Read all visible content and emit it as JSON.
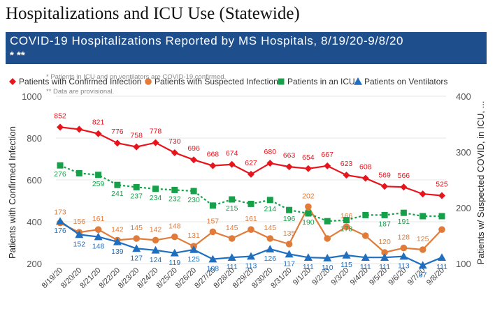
{
  "page_title": "Hospitalizations and ICU Use (Statewide)",
  "banner": {
    "title": "COVID-19 Hospitalizations Reported by MS Hospitals, 8/19/20-9/8/20",
    "marks": "* **"
  },
  "notes": {
    "note1": "* Patients in ICU and on ventilators are COVID-19 confirmed.",
    "note2": "** Data are provisional."
  },
  "colors": {
    "confirmed": "#e8141c",
    "suspected": "#e07b39",
    "icu": "#16a04a",
    "ventilators": "#1f6fc1",
    "banner": "#1f4e8c"
  },
  "chart_data": {
    "type": "line",
    "categories": [
      "8/19/20",
      "8/20/20",
      "8/21/20",
      "8/22/20",
      "8/23/20",
      "8/24/20",
      "8/25/20",
      "8/26/20",
      "8/27/20",
      "8/28/20",
      "8/29/20",
      "8/30/20",
      "8/31/20",
      "9/1/20",
      "9/2/20",
      "9/3/20",
      "9/4/20",
      "9/5/20",
      "9/6/20",
      "9/7/20",
      "9/8/20"
    ],
    "ylabel": "Patients with Confirmed Infection",
    "y2label": "Patients w/ Suspected COVID, in ICU, ...",
    "ylim": [
      200,
      1000
    ],
    "y2lim": [
      100,
      400
    ],
    "yticks": [
      "1000",
      "800",
      "600",
      "400",
      "200"
    ],
    "y2ticks": [
      "400",
      "300",
      "200",
      "100"
    ],
    "legend_position": "top",
    "series": [
      {
        "name": "Patients with Confirmed Infection",
        "axis": "left",
        "marker": "diamond",
        "dash": false,
        "values": [
          852,
          842,
          821,
          776,
          758,
          778,
          730,
          696,
          668,
          674,
          627,
          680,
          663,
          654,
          667,
          623,
          608,
          569,
          566,
          533,
          525
        ],
        "labels": [
          "852",
          "",
          "821",
          "776",
          "758",
          "778",
          "730",
          "696",
          "668",
          "674",
          "627",
          "680",
          "663",
          "654",
          "667",
          "623",
          "608",
          "569",
          "566",
          "",
          "525"
        ]
      },
      {
        "name": "Patients with Suspected Infection",
        "axis": "right",
        "marker": "circle",
        "dash": false,
        "values": [
          173,
          156,
          161,
          142,
          145,
          142,
          148,
          131,
          157,
          145,
          161,
          145,
          135,
          202,
          145,
          166,
          150,
          120,
          128,
          125,
          161
        ],
        "labels": [
          "173",
          "156",
          "161",
          "142",
          "145",
          "142",
          "148",
          "131",
          "157",
          "145",
          "161",
          "145",
          "135",
          "202",
          "",
          "166",
          "",
          "120",
          "128",
          "125",
          ""
        ]
      },
      {
        "name": "Patients in an ICU",
        "axis": "right",
        "marker": "square",
        "dash": true,
        "values": [
          276,
          262,
          259,
          241,
          237,
          234,
          232,
          230,
          204,
          215,
          207,
          214,
          196,
          190,
          176,
          178,
          187,
          187,
          191,
          185,
          185
        ],
        "labels": [
          "276",
          "",
          "259",
          "241",
          "237",
          "234",
          "232",
          "230",
          "",
          "215",
          "",
          "214",
          "196",
          "190",
          "",
          "178",
          "",
          "187",
          "191",
          "",
          ""
        ]
      },
      {
        "name": "Patients on Ventilators",
        "axis": "right",
        "marker": "triangle",
        "dash": false,
        "values": [
          176,
          152,
          148,
          139,
          127,
          124,
          119,
          125,
          108,
          111,
          113,
          126,
          117,
          111,
          110,
          115,
          111,
          111,
          113,
          97,
          111
        ],
        "labels": [
          "176",
          "152",
          "148",
          "139",
          "127",
          "124",
          "119",
          "125",
          "108",
          "111",
          "113",
          "126",
          "117",
          "111",
          "110",
          "115",
          "111",
          "111",
          "113",
          "97",
          "111"
        ]
      }
    ]
  }
}
